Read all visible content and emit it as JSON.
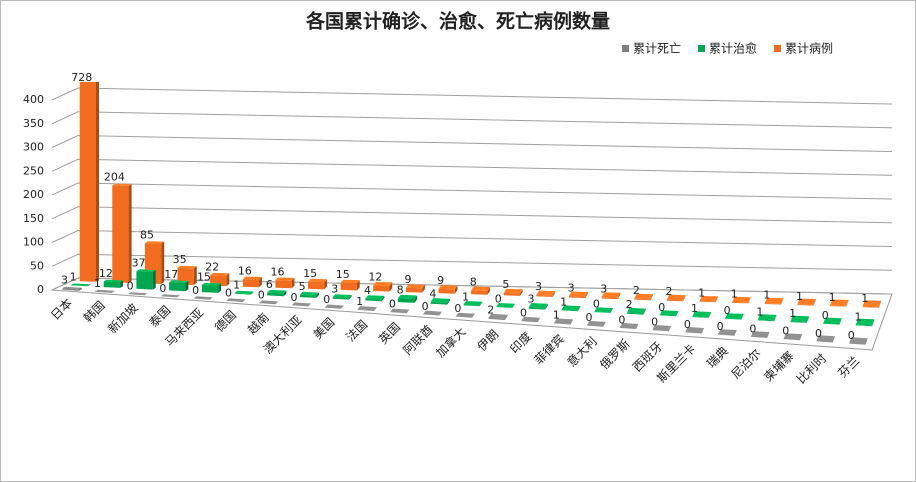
{
  "chart_data": {
    "type": "bar3d",
    "title": "各国累计确诊、治愈、死亡病例数量",
    "categories": [
      "日本",
      "韩国",
      "新加坡",
      "泰国",
      "马来西亚",
      "德国",
      "越南",
      "澳大利亚",
      "美国",
      "法国",
      "英国",
      "阿联酋",
      "加拿大",
      "伊朗",
      "印度",
      "菲律宾",
      "意大利",
      "俄罗斯",
      "西班牙",
      "斯里兰卡",
      "瑞典",
      "尼泊尔",
      "柬埔寨",
      "比利时",
      "芬兰"
    ],
    "series": [
      {
        "name": "累计死亡",
        "color": "#7f7f7f",
        "values": [
          3,
          1,
          0,
          0,
          0,
          0,
          0,
          0,
          0,
          1,
          0,
          0,
          0,
          2,
          0,
          1,
          0,
          0,
          0,
          0,
          0,
          0,
          0,
          0,
          0
        ]
      },
      {
        "name": "累计治愈",
        "color": "#00a650",
        "values": [
          1,
          12,
          37,
          17,
          15,
          1,
          6,
          5,
          3,
          4,
          8,
          4,
          1,
          0,
          3,
          1,
          0,
          2,
          0,
          1,
          0,
          1,
          1,
          0,
          1
        ]
      },
      {
        "name": "累计病例",
        "color": "#f26d1f",
        "values": [
          728,
          204,
          85,
          35,
          22,
          16,
          16,
          15,
          15,
          12,
          9,
          9,
          8,
          5,
          3,
          3,
          3,
          2,
          2,
          1,
          1,
          1,
          1,
          1,
          1
        ]
      }
    ],
    "ylim": [
      0,
      400
    ],
    "yticks": [
      0,
      50,
      100,
      150,
      200,
      250,
      300,
      350,
      400
    ],
    "grid": true,
    "legend": "top-right"
  }
}
